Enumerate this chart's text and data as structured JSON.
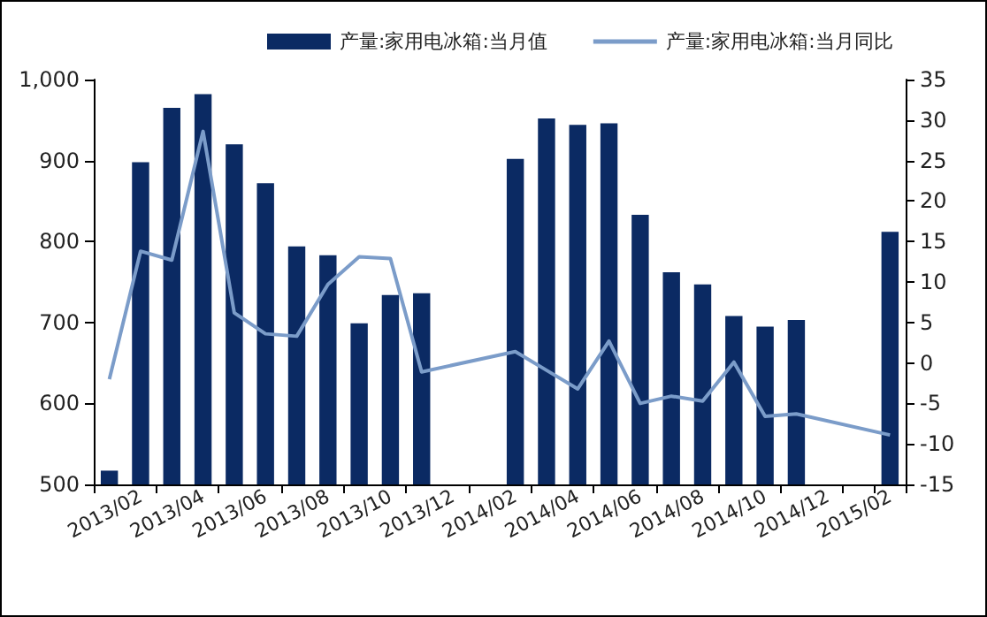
{
  "chart_data": {
    "type": "bar",
    "categories": [
      null,
      "2013/02",
      null,
      "2013/04",
      null,
      "2013/06",
      null,
      "2013/08",
      null,
      "2013/10",
      null,
      "2013/12",
      null,
      "2014/02",
      null,
      "2014/04",
      null,
      "2014/06",
      null,
      "2014/08",
      null,
      "2014/10",
      null,
      "2014/12",
      null,
      "2015/02"
    ],
    "series": [
      {
        "name": "产量:家用电冰箱:当月值",
        "color": "#0b2a63",
        "values": [
          517,
          898,
          965,
          982,
          920,
          872,
          794,
          783,
          699,
          734,
          736,
          null,
          null,
          902,
          952,
          944,
          946,
          833,
          762,
          747,
          708,
          695,
          703,
          null,
          null,
          812
        ]
      },
      {
        "name": "产量:家用电冰箱:当月同比",
        "type": "line",
        "axis": "y2",
        "color": "#7b9cc9",
        "values": [
          -2.0,
          13.8,
          12.7,
          28.6,
          6.2,
          3.6,
          3.3,
          9.7,
          13.1,
          12.9,
          -1.1,
          null,
          null,
          1.4,
          -0.9,
          -3.2,
          2.7,
          -5.0,
          -4.1,
          -4.7,
          0.1,
          -6.6,
          -6.3,
          null,
          null,
          -8.9
        ]
      }
    ],
    "ylim": [
      500,
      1000
    ],
    "yticks": [
      500,
      600,
      700,
      800,
      900,
      {
        "value": 1000,
        "label": "1,000"
      }
    ],
    "y2lim": [
      -15,
      35
    ],
    "y2ticks": [
      -15,
      -10,
      -5,
      0,
      5,
      10,
      15,
      20,
      25,
      30,
      35
    ],
    "grid": false,
    "legend": "top",
    "marker": "none",
    "line_style": "solid"
  }
}
